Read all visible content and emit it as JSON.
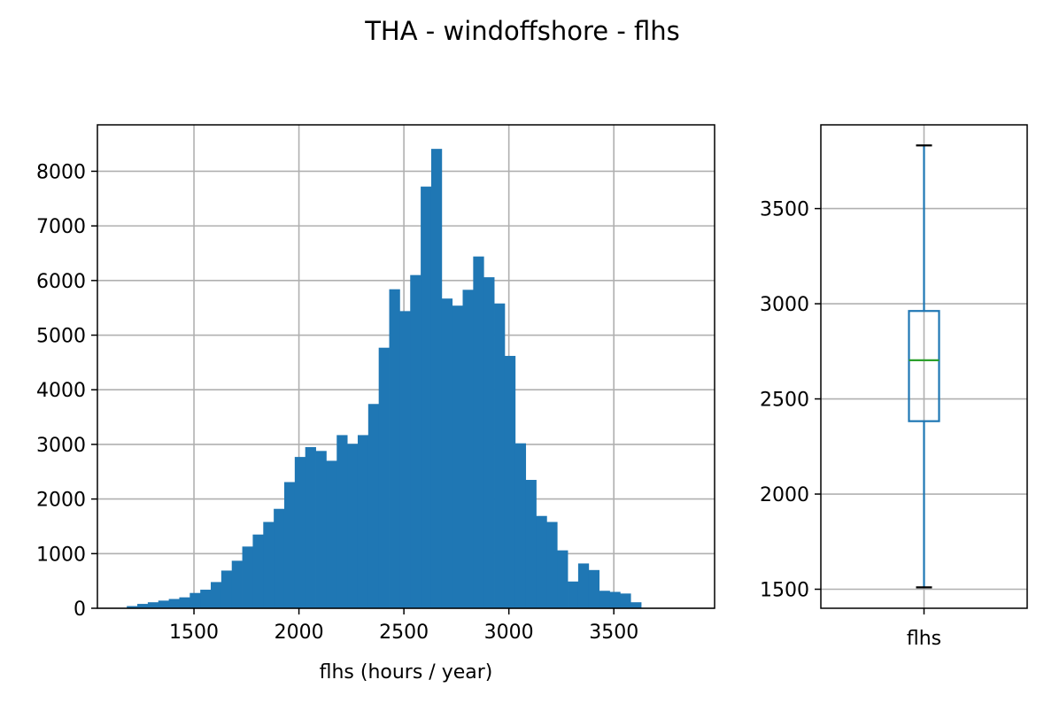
{
  "figure": {
    "title": "THA - windoffshore - flhs"
  },
  "chart_data": [
    {
      "type": "histogram",
      "xlabel": "flhs (hours / year)",
      "ylabel": "",
      "xlim": [
        1040,
        3980
      ],
      "ylim": [
        0,
        8850
      ],
      "x_ticks": [
        1500,
        2000,
        2500,
        3000,
        3500
      ],
      "y_ticks": [
        0,
        1000,
        2000,
        3000,
        4000,
        5000,
        6000,
        7000,
        8000
      ],
      "grid": true,
      "bar_color": "#1f77b4",
      "bin_start": 1180,
      "bin_width": 50,
      "values": [
        40,
        80,
        110,
        140,
        170,
        200,
        280,
        340,
        480,
        690,
        870,
        1130,
        1350,
        1580,
        1820,
        2310,
        2770,
        2950,
        2880,
        2700,
        3170,
        3010,
        3170,
        3740,
        4770,
        5840,
        5440,
        6100,
        7720,
        8410,
        5670,
        5540,
        5830,
        6440,
        6060,
        5580,
        4620,
        3020,
        2350,
        1690,
        1580,
        1060,
        490,
        820,
        700,
        320,
        300,
        270,
        110
      ]
    },
    {
      "type": "boxplot",
      "category": "flhs",
      "ylim": [
        1400,
        3940
      ],
      "y_ticks": [
        1500,
        2000,
        2500,
        3000,
        3500
      ],
      "grid": true,
      "whisker_low": 1510,
      "q1": 2383,
      "median": 2703,
      "q3": 2962,
      "whisker_high": 3832,
      "box_color": "#1f77b4",
      "median_color": "#2ca02c",
      "cap_color": "#000000"
    }
  ]
}
